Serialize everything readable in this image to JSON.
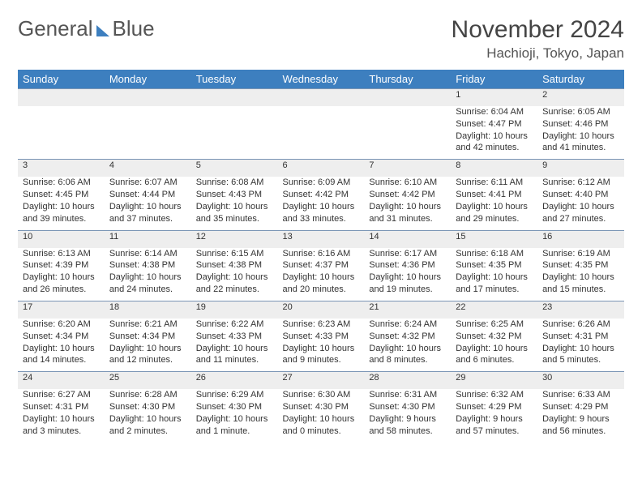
{
  "brand": {
    "part1": "General",
    "part2": "Blue"
  },
  "title": "November 2024",
  "location": "Hachioji, Tokyo, Japan",
  "colors": {
    "header_bg": "#3d7fbf",
    "daynum_bg": "#eeeeee",
    "border": "#7a95b5",
    "text": "#333333"
  },
  "weekdays": [
    "Sunday",
    "Monday",
    "Tuesday",
    "Wednesday",
    "Thursday",
    "Friday",
    "Saturday"
  ],
  "weeks": [
    [
      null,
      null,
      null,
      null,
      null,
      {
        "n": "1",
        "r": "6:04 AM",
        "s": "4:47 PM",
        "d": "10 hours and 42 minutes."
      },
      {
        "n": "2",
        "r": "6:05 AM",
        "s": "4:46 PM",
        "d": "10 hours and 41 minutes."
      }
    ],
    [
      {
        "n": "3",
        "r": "6:06 AM",
        "s": "4:45 PM",
        "d": "10 hours and 39 minutes."
      },
      {
        "n": "4",
        "r": "6:07 AM",
        "s": "4:44 PM",
        "d": "10 hours and 37 minutes."
      },
      {
        "n": "5",
        "r": "6:08 AM",
        "s": "4:43 PM",
        "d": "10 hours and 35 minutes."
      },
      {
        "n": "6",
        "r": "6:09 AM",
        "s": "4:42 PM",
        "d": "10 hours and 33 minutes."
      },
      {
        "n": "7",
        "r": "6:10 AM",
        "s": "4:42 PM",
        "d": "10 hours and 31 minutes."
      },
      {
        "n": "8",
        "r": "6:11 AM",
        "s": "4:41 PM",
        "d": "10 hours and 29 minutes."
      },
      {
        "n": "9",
        "r": "6:12 AM",
        "s": "4:40 PM",
        "d": "10 hours and 27 minutes."
      }
    ],
    [
      {
        "n": "10",
        "r": "6:13 AM",
        "s": "4:39 PM",
        "d": "10 hours and 26 minutes."
      },
      {
        "n": "11",
        "r": "6:14 AM",
        "s": "4:38 PM",
        "d": "10 hours and 24 minutes."
      },
      {
        "n": "12",
        "r": "6:15 AM",
        "s": "4:38 PM",
        "d": "10 hours and 22 minutes."
      },
      {
        "n": "13",
        "r": "6:16 AM",
        "s": "4:37 PM",
        "d": "10 hours and 20 minutes."
      },
      {
        "n": "14",
        "r": "6:17 AM",
        "s": "4:36 PM",
        "d": "10 hours and 19 minutes."
      },
      {
        "n": "15",
        "r": "6:18 AM",
        "s": "4:35 PM",
        "d": "10 hours and 17 minutes."
      },
      {
        "n": "16",
        "r": "6:19 AM",
        "s": "4:35 PM",
        "d": "10 hours and 15 minutes."
      }
    ],
    [
      {
        "n": "17",
        "r": "6:20 AM",
        "s": "4:34 PM",
        "d": "10 hours and 14 minutes."
      },
      {
        "n": "18",
        "r": "6:21 AM",
        "s": "4:34 PM",
        "d": "10 hours and 12 minutes."
      },
      {
        "n": "19",
        "r": "6:22 AM",
        "s": "4:33 PM",
        "d": "10 hours and 11 minutes."
      },
      {
        "n": "20",
        "r": "6:23 AM",
        "s": "4:33 PM",
        "d": "10 hours and 9 minutes."
      },
      {
        "n": "21",
        "r": "6:24 AM",
        "s": "4:32 PM",
        "d": "10 hours and 8 minutes."
      },
      {
        "n": "22",
        "r": "6:25 AM",
        "s": "4:32 PM",
        "d": "10 hours and 6 minutes."
      },
      {
        "n": "23",
        "r": "6:26 AM",
        "s": "4:31 PM",
        "d": "10 hours and 5 minutes."
      }
    ],
    [
      {
        "n": "24",
        "r": "6:27 AM",
        "s": "4:31 PM",
        "d": "10 hours and 3 minutes."
      },
      {
        "n": "25",
        "r": "6:28 AM",
        "s": "4:30 PM",
        "d": "10 hours and 2 minutes."
      },
      {
        "n": "26",
        "r": "6:29 AM",
        "s": "4:30 PM",
        "d": "10 hours and 1 minute."
      },
      {
        "n": "27",
        "r": "6:30 AM",
        "s": "4:30 PM",
        "d": "10 hours and 0 minutes."
      },
      {
        "n": "28",
        "r": "6:31 AM",
        "s": "4:30 PM",
        "d": "9 hours and 58 minutes."
      },
      {
        "n": "29",
        "r": "6:32 AM",
        "s": "4:29 PM",
        "d": "9 hours and 57 minutes."
      },
      {
        "n": "30",
        "r": "6:33 AM",
        "s": "4:29 PM",
        "d": "9 hours and 56 minutes."
      }
    ]
  ],
  "labels": {
    "sunrise": "Sunrise: ",
    "sunset": "Sunset: ",
    "daylight": "Daylight: "
  }
}
